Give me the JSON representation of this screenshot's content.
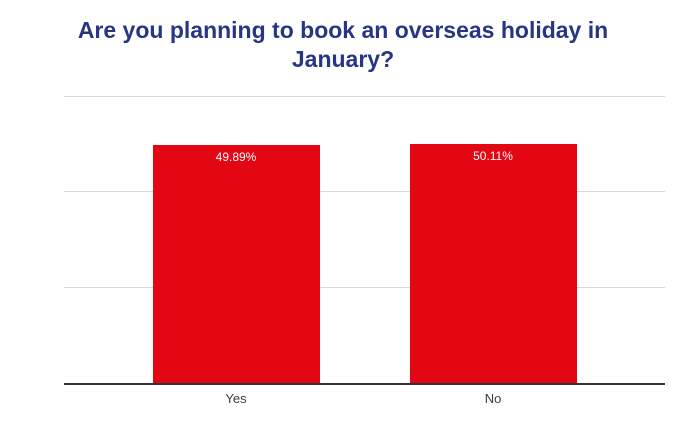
{
  "chart_data": {
    "type": "bar",
    "title": "Are you planning to book an overseas holiday in January?",
    "categories": [
      "Yes",
      "No"
    ],
    "values": [
      49.89,
      50.11
    ],
    "value_labels": [
      "49.89%",
      "50.11%"
    ],
    "xlabel": "",
    "ylabel": "",
    "ylim": [
      0,
      60
    ],
    "gridline_step": 20,
    "grid": true,
    "legend": false,
    "colors": {
      "bar": "#e30613",
      "title": "#283583",
      "value_label": "#ffffff",
      "gridline": "#d9d9d9",
      "axis_line": "#333333",
      "category_label": "#3d3d3d",
      "background": "#ffffff"
    }
  }
}
